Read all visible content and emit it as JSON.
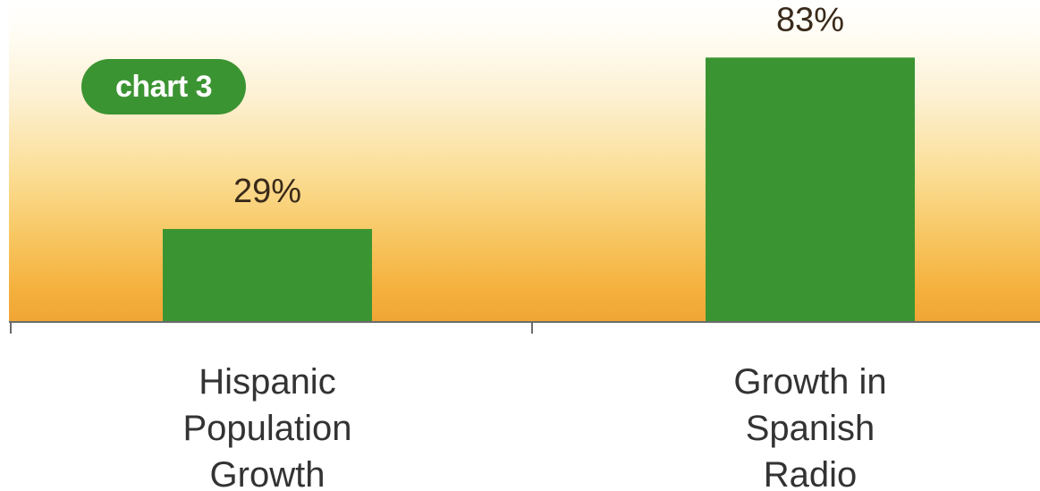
{
  "badge_label": "chart 3",
  "colors": {
    "bar": "#3b9432",
    "background_top": "#ffffff",
    "background_bottom": "#f0a535"
  },
  "chart_data": {
    "type": "bar",
    "categories": [
      [
        "Hispanic",
        "Population",
        "Growth"
      ],
      [
        "Growth in",
        "Spanish",
        "Radio"
      ]
    ],
    "values": [
      29,
      83
    ],
    "value_labels": [
      "29%",
      "83%"
    ],
    "unit": "%",
    "ylim": [
      0,
      100
    ],
    "grid": false,
    "legend": "none"
  }
}
